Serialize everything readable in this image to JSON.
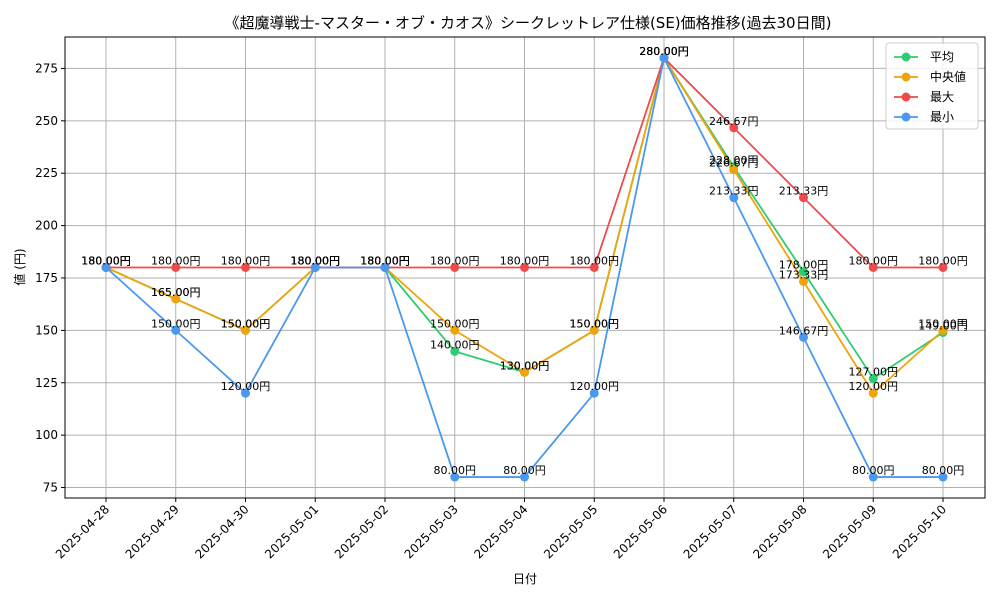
{
  "chart_data": {
    "type": "line",
    "title": "《超魔導戦士-マスター・オブ・カオス》シークレットレア仕様(SE)価格推移(過去30日間)",
    "xlabel": "日付",
    "ylabel": "値 (円)",
    "ylim": [
      70,
      290
    ],
    "yticks": [
      75,
      100,
      125,
      150,
      175,
      200,
      225,
      250,
      275
    ],
    "grid": true,
    "legend_position": "top-right",
    "value_suffix": "円",
    "categories": [
      "2025-04-28",
      "2025-04-29",
      "2025-04-30",
      "2025-05-01",
      "2025-05-02",
      "2025-05-03",
      "2025-05-04",
      "2025-05-05",
      "2025-05-06",
      "2025-05-07",
      "2025-05-08",
      "2025-05-09",
      "2025-05-10"
    ],
    "series": [
      {
        "name": "平均",
        "color": "#2ecc71",
        "values": [
          180,
          165,
          150,
          180,
          180,
          140,
          130,
          150,
          280,
          228,
          178,
          127,
          149
        ]
      },
      {
        "name": "中央値",
        "color": "#f1a30c",
        "values": [
          180,
          165,
          150,
          180,
          180,
          150,
          130,
          150,
          280,
          226.67,
          173.33,
          120,
          150
        ]
      },
      {
        "name": "最大",
        "color": "#f04a4a",
        "values": [
          180,
          180,
          180,
          180,
          180,
          180,
          180,
          180,
          280,
          246.67,
          213.33,
          180,
          180
        ]
      },
      {
        "name": "最小",
        "color": "#4a98f0",
        "values": [
          180,
          150,
          120,
          180,
          180,
          80,
          80,
          120,
          280,
          213.33,
          146.67,
          80,
          80
        ]
      }
    ]
  }
}
